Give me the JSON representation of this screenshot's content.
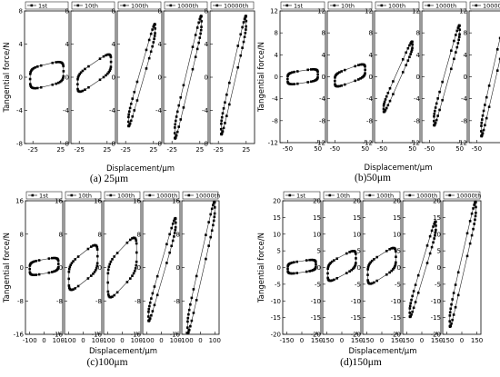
{
  "chart_data": [
    {
      "type": "scatter",
      "panel_label": "(a) 25μm",
      "ylabel": "Tangential force/N",
      "xlabel": "Displacement/μm",
      "ylim": [
        -8,
        8
      ],
      "yticks": [
        -8,
        -4,
        0,
        4,
        8
      ],
      "subplots": [
        {
          "legend": "1st",
          "xlim": [
            -40,
            40
          ],
          "xticks": [
            -25,
            25
          ],
          "xtick_labels": [
            "-25",
            "25"
          ],
          "loop": {
            "xmin": -30,
            "xmax": 30,
            "ymin": -1.5,
            "ymax": 2,
            "tilt": 0.3
          }
        },
        {
          "legend": "10th",
          "xlim": [
            -40,
            40
          ],
          "xticks": [
            -25,
            25
          ],
          "xtick_labels": [
            "-25",
            "25"
          ],
          "loop": {
            "xmin": -28,
            "xmax": 32,
            "ymin": -2,
            "ymax": 3,
            "tilt": 0.6
          }
        },
        {
          "legend": "100th",
          "xlim": [
            -40,
            40
          ],
          "xticks": [
            -25,
            25
          ],
          "xtick_labels": [
            "-25",
            "25"
          ],
          "loop": {
            "xmin": -20,
            "xmax": 28,
            "ymin": -6,
            "ymax": 6.5,
            "tilt": 1.0
          }
        },
        {
          "legend": "1000th",
          "xlim": [
            -40,
            40
          ],
          "xticks": [
            -25,
            25
          ],
          "xtick_labels": [
            "-25",
            "25"
          ],
          "loop": {
            "xmin": -20,
            "xmax": 28,
            "ymin": -7.5,
            "ymax": 7.5,
            "tilt": 1.0
          }
        },
        {
          "legend": "10000th",
          "xlim": [
            -40,
            40
          ],
          "xticks": [
            -25,
            25
          ],
          "xtick_labels": [
            "-25",
            "25"
          ],
          "loop": {
            "xmin": -20,
            "xmax": 25,
            "ymin": -7,
            "ymax": 7.5,
            "tilt": 1.0
          }
        }
      ]
    },
    {
      "type": "scatter",
      "panel_label": "(b)50μm",
      "ylabel": "Tangential force/N",
      "xlabel": "Displacement/μm",
      "ylim": [
        -12,
        12
      ],
      "yticks": [
        -12,
        -8,
        -4,
        0,
        4,
        8,
        12
      ],
      "subplots": [
        {
          "legend": "1st",
          "xlim": [
            -75,
            75
          ],
          "xticks": [
            -50,
            50
          ],
          "xtick_labels": [
            "-50",
            "50"
          ],
          "loop": {
            "xmin": -50,
            "xmax": 50,
            "ymin": -1.5,
            "ymax": 1.5,
            "tilt": 0.3
          }
        },
        {
          "legend": "10th",
          "xlim": [
            -75,
            75
          ],
          "xticks": [
            -50,
            50
          ],
          "xtick_labels": [
            "-50",
            "50"
          ],
          "loop": {
            "xmin": -50,
            "xmax": 50,
            "ymin": -2,
            "ymax": 2.5,
            "tilt": 0.5
          }
        },
        {
          "legend": "100th",
          "xlim": [
            -75,
            75
          ],
          "xticks": [
            -50,
            50
          ],
          "xtick_labels": [
            "-50",
            "50"
          ],
          "loop": {
            "xmin": -45,
            "xmax": 50,
            "ymin": -6.5,
            "ymax": 6.5,
            "tilt": 1.0
          }
        },
        {
          "legend": "1000th",
          "xlim": [
            -75,
            75
          ],
          "xticks": [
            -50,
            50
          ],
          "xtick_labels": [
            "-50",
            "50"
          ],
          "loop": {
            "xmin": -35,
            "xmax": 50,
            "ymin": -9,
            "ymax": 9.5,
            "tilt": 1.0
          }
        },
        {
          "legend": "10000th",
          "xlim": [
            -75,
            75
          ],
          "xticks": [
            -50,
            50
          ],
          "xtick_labels": [
            "-50",
            "50"
          ],
          "loop": {
            "xmin": -35,
            "xmax": 45,
            "ymin": -11,
            "ymax": 10.5,
            "tilt": 1.0
          }
        }
      ]
    },
    {
      "type": "scatter",
      "panel_label": "(c)100μm",
      "ylabel": "Tangential force/N",
      "xlabel": "Displacement/μm",
      "ylim": [
        -16,
        16
      ],
      "yticks": [
        -16,
        -8,
        0,
        8,
        16
      ],
      "subplots": [
        {
          "legend": "1st",
          "xlim": [
            -130,
            130
          ],
          "xticks": [
            -100,
            0,
            100
          ],
          "xtick_labels": [
            "-100",
            "0",
            "100"
          ],
          "loop": {
            "xmin": -100,
            "xmax": 100,
            "ymin": -2,
            "ymax": 2.5,
            "tilt": 0.3
          }
        },
        {
          "legend": "10th",
          "xlim": [
            -130,
            130
          ],
          "xticks": [
            -100,
            0,
            100
          ],
          "xtick_labels": [
            "-100",
            "0",
            "100"
          ],
          "loop": {
            "xmin": -100,
            "xmax": 100,
            "ymin": -6,
            "ymax": 6,
            "tilt": 0.5
          }
        },
        {
          "legend": "100th",
          "xlim": [
            -130,
            130
          ],
          "xticks": [
            -100,
            0,
            100
          ],
          "xtick_labels": [
            "-100",
            "0",
            "100"
          ],
          "loop": {
            "xmin": -100,
            "xmax": 100,
            "ymin": -8,
            "ymax": 8,
            "tilt": 0.5
          }
        },
        {
          "legend": "1000th",
          "xlim": [
            -130,
            130
          ],
          "xticks": [
            -100,
            0,
            100
          ],
          "xtick_labels": [
            "-100",
            "0",
            "100"
          ],
          "loop": {
            "xmin": -90,
            "xmax": 100,
            "ymin": -13,
            "ymax": 12,
            "tilt": 1.0
          }
        },
        {
          "legend": "10000th",
          "xlim": [
            -130,
            130
          ],
          "xticks": [
            -100,
            0,
            100
          ],
          "xtick_labels": [
            "-100",
            "0",
            "100"
          ],
          "loop": {
            "xmin": -90,
            "xmax": 100,
            "ymin": -16,
            "ymax": 16,
            "tilt": 1.0
          }
        }
      ]
    },
    {
      "type": "scatter",
      "panel_label": "(d)150μm",
      "ylabel": "Tangential force/N",
      "xlabel": "Displacement/μm",
      "ylim": [
        -20,
        20
      ],
      "yticks": [
        -20,
        -15,
        -10,
        -5,
        0,
        5,
        10,
        15,
        20
      ],
      "subplots": [
        {
          "legend": "1st",
          "xlim": [
            -190,
            190
          ],
          "xticks": [
            -150,
            0,
            150
          ],
          "xtick_labels": [
            "-150",
            "0",
            "150"
          ],
          "loop": {
            "xmin": -140,
            "xmax": 140,
            "ymin": -2,
            "ymax": 2.5,
            "tilt": 0.3
          }
        },
        {
          "legend": "10th",
          "xlim": [
            -190,
            190
          ],
          "xticks": [
            -150,
            0,
            150
          ],
          "xtick_labels": [
            "-150",
            "0",
            "150"
          ],
          "loop": {
            "xmin": -140,
            "xmax": 140,
            "ymin": -4.5,
            "ymax": 5.5,
            "tilt": 0.5
          }
        },
        {
          "legend": "100th",
          "xlim": [
            -190,
            190
          ],
          "xticks": [
            -150,
            0,
            150
          ],
          "xtick_labels": [
            "-150",
            "0",
            "150"
          ],
          "loop": {
            "xmin": -140,
            "xmax": 140,
            "ymin": -5.5,
            "ymax": 6.5,
            "tilt": 0.5
          }
        },
        {
          "legend": "1000th",
          "xlim": [
            -190,
            190
          ],
          "xticks": [
            -150,
            0,
            150
          ],
          "xtick_labels": [
            "-150",
            "0",
            "150"
          ],
          "loop": {
            "xmin": -120,
            "xmax": 140,
            "ymin": -15,
            "ymax": 14,
            "tilt": 1.0
          }
        },
        {
          "legend": "10000th",
          "xlim": [
            -190,
            190
          ],
          "xticks": [
            -150,
            0,
            150
          ],
          "xtick_labels": [
            "-150",
            "0",
            "150"
          ],
          "loop": {
            "xmin": -120,
            "xmax": 140,
            "ymin": -18,
            "ymax": 20,
            "tilt": 1.0
          }
        }
      ]
    }
  ]
}
